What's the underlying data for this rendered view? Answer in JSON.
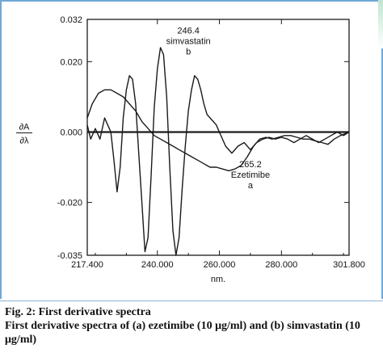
{
  "chart_data": {
    "type": "line",
    "xlabel": "nm.",
    "ylabel_top": "∂A",
    "ylabel_bottom": "∂λ",
    "xlim": [
      217.4,
      301.8
    ],
    "ylim": [
      -0.035,
      0.032
    ],
    "x_ticks": [
      {
        "value": 217.4,
        "label": "217.400"
      },
      {
        "value": 240.0,
        "label": "240.000"
      },
      {
        "value": 260.0,
        "label": "260.000"
      },
      {
        "value": 280.0,
        "label": "280.000"
      },
      {
        "value": 301.8,
        "label": "301.800"
      }
    ],
    "y_ticks": [
      {
        "value": 0.032,
        "label": "0.032"
      },
      {
        "value": 0.02,
        "label": "0.020"
      },
      {
        "value": 0.0,
        "label": "0.000"
      },
      {
        "value": -0.02,
        "label": "-0.020"
      },
      {
        "value": -0.035,
        "label": "-0.035"
      }
    ],
    "annotations": [
      {
        "lines": [
          "246.4",
          "simvastatin",
          "b"
        ],
        "x": 250.0,
        "y": 0.028
      },
      {
        "lines": [
          "265.2",
          "Ezetimibe",
          "a"
        ],
        "x": 270.0,
        "y": -0.01
      }
    ],
    "series": [
      {
        "x": [
          217.4,
          219,
          221,
          223,
          225,
          227,
          229,
          231,
          233,
          235,
          237,
          239,
          241,
          243,
          245,
          247,
          249,
          251,
          253,
          255,
          257,
          259,
          261,
          263,
          265,
          267,
          269,
          271,
          273,
          275,
          277,
          279,
          281,
          283,
          285,
          287,
          289,
          291,
          293,
          295,
          297,
          299,
          301.8
        ],
        "y": [
          0.004,
          0.008,
          0.011,
          0.012,
          0.012,
          0.011,
          0.01,
          0.008,
          0.006,
          0.003,
          0.001,
          -0.001,
          -0.002,
          -0.003,
          -0.004,
          -0.005,
          -0.006,
          -0.007,
          -0.008,
          -0.009,
          -0.01,
          -0.01,
          -0.0105,
          -0.011,
          -0.0105,
          -0.0095,
          -0.007,
          -0.004,
          -0.002,
          -0.0015,
          -0.002,
          -0.0015,
          -0.001,
          -0.001,
          -0.0015,
          -0.002,
          -0.002,
          -0.0025,
          -0.003,
          -0.0035,
          -0.002,
          -0.001,
          0.0
        ]
      },
      {
        "x": [
          217.4,
          218.5,
          220,
          221.5,
          223,
          224,
          225,
          226,
          227,
          228,
          229,
          230,
          231,
          232,
          233,
          234,
          235,
          236,
          237,
          238,
          239,
          240,
          241,
          242,
          243,
          244,
          245,
          246,
          247,
          248,
          249,
          250,
          251,
          252,
          253,
          254,
          255,
          256,
          257,
          258,
          259,
          260,
          262,
          264,
          266,
          268,
          270,
          272,
          274,
          276,
          278,
          280,
          282,
          284,
          286,
          288,
          290,
          292,
          294,
          296,
          298,
          300,
          301.8
        ],
        "y": [
          0.002,
          -0.002,
          0.001,
          -0.002,
          0.004,
          0.002,
          0.0,
          -0.008,
          -0.017,
          -0.01,
          0.004,
          0.012,
          0.016,
          0.015,
          0.008,
          -0.006,
          -0.02,
          -0.034,
          -0.03,
          -0.012,
          0.007,
          0.018,
          0.024,
          0.022,
          0.01,
          -0.01,
          -0.028,
          -0.035,
          -0.03,
          -0.016,
          -0.004,
          0.006,
          0.012,
          0.016,
          0.015,
          0.012,
          0.008,
          0.005,
          0.004,
          0.003,
          0.002,
          0.0,
          -0.004,
          -0.006,
          -0.004,
          -0.003,
          -0.005,
          -0.003,
          -0.002,
          -0.0015,
          -0.002,
          -0.0015,
          -0.002,
          -0.003,
          -0.002,
          -0.001,
          -0.002,
          -0.003,
          -0.002,
          -0.001,
          0.0,
          -0.001,
          0.0
        ]
      }
    ]
  },
  "caption": {
    "title": "Fig. 2: First derivative spectra",
    "description": "First derivative spectra of (a) ezetimibe (10 μg/ml) and (b) simvastatin (10 μg/ml)"
  },
  "colors": {
    "line": "#1a1a1a",
    "frame": "#6fa8d6"
  }
}
